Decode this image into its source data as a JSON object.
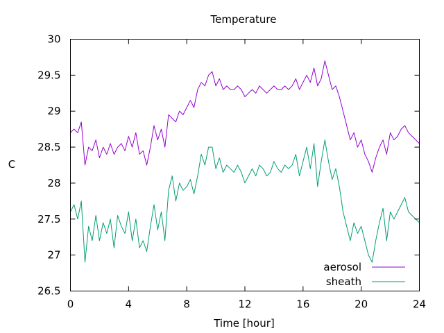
{
  "chart_data": {
    "type": "line",
    "title": "Temperature",
    "xlabel": "Time [hour]",
    "ylabel": "C",
    "xlim": [
      0,
      24
    ],
    "ylim": [
      26.5,
      30
    ],
    "xticks": [
      0,
      4,
      8,
      12,
      16,
      20,
      24
    ],
    "yticks": [
      26.5,
      27,
      27.5,
      28,
      28.5,
      29,
      29.5,
      30
    ],
    "grid": false,
    "legend_position": "bottom-right",
    "series": [
      {
        "name": "aerosol",
        "color": "#9400d3",
        "x": [
          0,
          0.25,
          0.5,
          0.75,
          1,
          1.25,
          1.5,
          1.75,
          2,
          2.25,
          2.5,
          2.75,
          3,
          3.25,
          3.5,
          3.75,
          4,
          4.25,
          4.5,
          4.75,
          5,
          5.25,
          5.5,
          5.75,
          6,
          6.25,
          6.5,
          6.75,
          7,
          7.25,
          7.5,
          7.75,
          8,
          8.25,
          8.5,
          8.75,
          9,
          9.25,
          9.5,
          9.75,
          10,
          10.25,
          10.5,
          10.75,
          11,
          11.25,
          11.5,
          11.75,
          12,
          12.25,
          12.5,
          12.75,
          13,
          13.25,
          13.5,
          13.75,
          14,
          14.25,
          14.5,
          14.75,
          15,
          15.25,
          15.5,
          15.75,
          16,
          16.25,
          16.5,
          16.75,
          17,
          17.25,
          17.5,
          17.75,
          18,
          18.25,
          18.5,
          18.75,
          19,
          19.25,
          19.5,
          19.75,
          20,
          20.25,
          20.5,
          20.75,
          21,
          21.25,
          21.5,
          21.75,
          22,
          22.25,
          22.5,
          22.75,
          23,
          23.25,
          23.5,
          23.75,
          24
        ],
        "y": [
          28.7,
          28.75,
          28.7,
          28.85,
          28.25,
          28.5,
          28.45,
          28.6,
          28.35,
          28.5,
          28.4,
          28.55,
          28.4,
          28.5,
          28.55,
          28.45,
          28.65,
          28.5,
          28.7,
          28.4,
          28.45,
          28.25,
          28.5,
          28.8,
          28.6,
          28.75,
          28.5,
          28.95,
          28.9,
          28.85,
          29.0,
          28.95,
          29.05,
          29.15,
          29.05,
          29.3,
          29.4,
          29.35,
          29.5,
          29.55,
          29.35,
          29.45,
          29.3,
          29.35,
          29.3,
          29.3,
          29.35,
          29.3,
          29.2,
          29.25,
          29.3,
          29.25,
          29.35,
          29.3,
          29.25,
          29.3,
          29.35,
          29.3,
          29.3,
          29.35,
          29.3,
          29.35,
          29.45,
          29.3,
          29.4,
          29.5,
          29.4,
          29.6,
          29.35,
          29.45,
          29.7,
          29.5,
          29.3,
          29.35,
          29.2,
          29.0,
          28.8,
          28.6,
          28.7,
          28.5,
          28.6,
          28.4,
          28.3,
          28.15,
          28.35,
          28.5,
          28.6,
          28.4,
          28.7,
          28.6,
          28.65,
          28.75,
          28.8,
          28.7,
          28.65,
          28.6,
          28.55
        ]
      },
      {
        "name": "sheath",
        "color": "#009e73",
        "x": [
          0,
          0.25,
          0.5,
          0.75,
          1,
          1.25,
          1.5,
          1.75,
          2,
          2.25,
          2.5,
          2.75,
          3,
          3.25,
          3.5,
          3.75,
          4,
          4.25,
          4.5,
          4.75,
          5,
          5.25,
          5.5,
          5.75,
          6,
          6.25,
          6.5,
          6.75,
          7,
          7.25,
          7.5,
          7.75,
          8,
          8.25,
          8.5,
          8.75,
          9,
          9.25,
          9.5,
          9.75,
          10,
          10.25,
          10.5,
          10.75,
          11,
          11.25,
          11.5,
          11.75,
          12,
          12.25,
          12.5,
          12.75,
          13,
          13.25,
          13.5,
          13.75,
          14,
          14.25,
          14.5,
          14.75,
          15,
          15.25,
          15.5,
          15.75,
          16,
          16.25,
          16.5,
          16.75,
          17,
          17.25,
          17.5,
          17.75,
          18,
          18.25,
          18.5,
          18.75,
          19,
          19.25,
          19.5,
          19.75,
          20,
          20.25,
          20.5,
          20.75,
          21,
          21.25,
          21.5,
          21.75,
          22,
          22.25,
          22.5,
          22.75,
          23,
          23.25,
          23.5,
          23.75,
          24
        ],
        "y": [
          27.6,
          27.7,
          27.5,
          27.75,
          26.9,
          27.4,
          27.2,
          27.55,
          27.2,
          27.45,
          27.3,
          27.5,
          27.1,
          27.55,
          27.4,
          27.3,
          27.6,
          27.2,
          27.5,
          27.1,
          27.2,
          27.05,
          27.4,
          27.7,
          27.35,
          27.6,
          27.2,
          27.9,
          28.1,
          27.75,
          28.0,
          27.9,
          27.95,
          28.05,
          27.85,
          28.1,
          28.4,
          28.25,
          28.5,
          28.5,
          28.2,
          28.35,
          28.15,
          28.25,
          28.2,
          28.15,
          28.25,
          28.15,
          28.0,
          28.1,
          28.2,
          28.1,
          28.25,
          28.2,
          28.1,
          28.15,
          28.3,
          28.2,
          28.15,
          28.25,
          28.2,
          28.25,
          28.4,
          28.1,
          28.3,
          28.5,
          28.2,
          28.55,
          27.95,
          28.3,
          28.6,
          28.3,
          28.05,
          28.2,
          27.95,
          27.6,
          27.4,
          27.2,
          27.45,
          27.3,
          27.4,
          27.2,
          27.0,
          26.9,
          27.2,
          27.45,
          27.65,
          27.2,
          27.6,
          27.5,
          27.6,
          27.7,
          27.8,
          27.6,
          27.55,
          27.5,
          27.45
        ]
      }
    ]
  }
}
